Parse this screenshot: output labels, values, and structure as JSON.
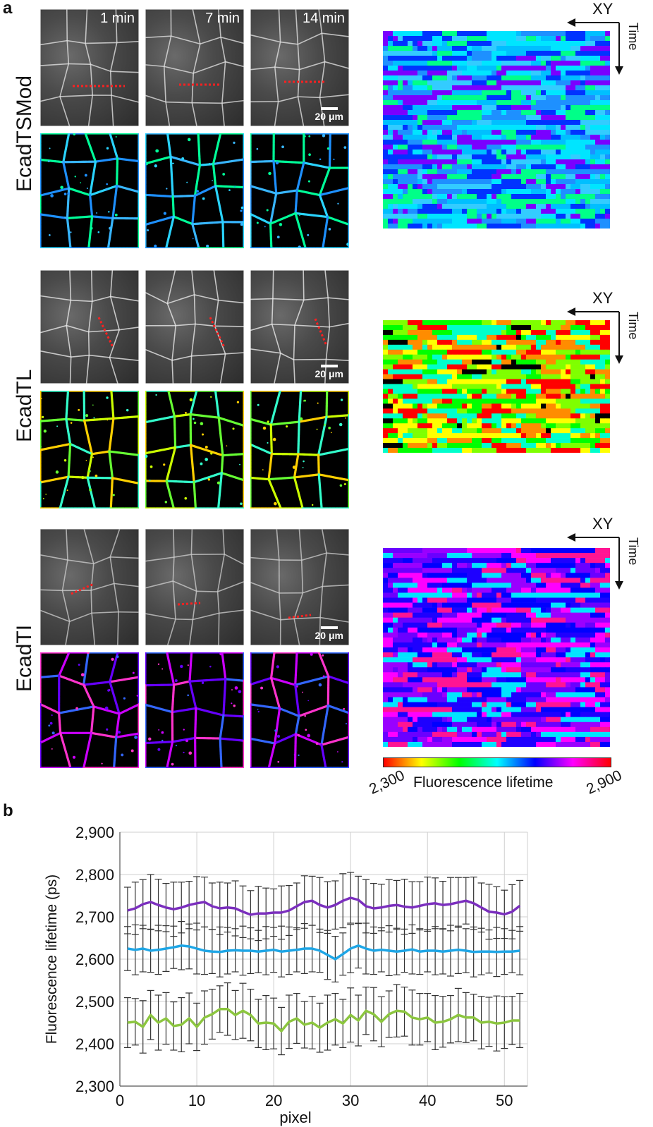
{
  "panel_a": {
    "letter": "a",
    "time_labels": [
      "1 min",
      "7 min",
      "14 min"
    ],
    "scale_bar": "20 μm",
    "rows": [
      {
        "label": "EcadTSMod",
        "kymo_palette": [
          "#00e5ff",
          "#00bfff",
          "#1e90ff",
          "#0033ff",
          "#00ff88",
          "#33ccff",
          "#7a00ff"
        ]
      },
      {
        "label": "EcadTL",
        "kymo_palette": [
          "#00ff00",
          "#7fff00",
          "#ffff00",
          "#ff8c00",
          "#00ffcc",
          "#ff0000",
          "#000000"
        ]
      },
      {
        "label": "EcadTI",
        "kymo_palette": [
          "#ff00ff",
          "#9a00ff",
          "#0000ff",
          "#00e5ff",
          "#ff1493",
          "#6a00ff",
          "#1e00ff"
        ]
      }
    ],
    "kymo_axis": {
      "xy": "XY",
      "time": "Time"
    },
    "colorbar": {
      "min": "2,300",
      "label": "Fluorescence lifetime",
      "max": "2,900"
    }
  },
  "panel_b": {
    "letter": "b"
  },
  "chart_data": {
    "type": "line",
    "title": "",
    "xlabel": "pixel",
    "ylabel": "Fluorescence lifetime (ps)",
    "xlim": [
      0,
      53
    ],
    "ylim": [
      2300,
      2900
    ],
    "xticks": [
      0,
      10,
      20,
      30,
      40,
      50
    ],
    "yticks": [
      2300,
      2400,
      2500,
      2600,
      2700,
      2800,
      2900
    ],
    "ytick_labels": [
      "2,300",
      "2,400",
      "2,500",
      "2,600",
      "2,700",
      "2,800",
      "2,900"
    ],
    "grid": true,
    "x": [
      1,
      2,
      3,
      4,
      5,
      6,
      7,
      8,
      9,
      10,
      11,
      12,
      13,
      14,
      15,
      16,
      17,
      18,
      19,
      20,
      21,
      22,
      23,
      24,
      25,
      26,
      27,
      28,
      29,
      30,
      31,
      32,
      33,
      34,
      35,
      36,
      37,
      38,
      39,
      40,
      41,
      42,
      43,
      44,
      45,
      46,
      47,
      48,
      49,
      50,
      51,
      52
    ],
    "series": [
      {
        "color": "#7b2fbe",
        "values": [
          2715,
          2720,
          2730,
          2735,
          2728,
          2722,
          2718,
          2722,
          2728,
          2732,
          2735,
          2725,
          2720,
          2722,
          2720,
          2712,
          2705,
          2708,
          2708,
          2710,
          2710,
          2715,
          2725,
          2735,
          2738,
          2728,
          2722,
          2728,
          2738,
          2745,
          2740,
          2725,
          2720,
          2722,
          2726,
          2728,
          2724,
          2722,
          2726,
          2730,
          2732,
          2728,
          2730,
          2734,
          2738,
          2732,
          2722,
          2712,
          2710,
          2706,
          2712,
          2726
        ],
        "err": 60
      },
      {
        "color": "#1ea6e6",
        "values": [
          2625,
          2622,
          2625,
          2620,
          2622,
          2625,
          2628,
          2632,
          2630,
          2625,
          2620,
          2618,
          2617,
          2620,
          2621,
          2620,
          2620,
          2618,
          2620,
          2622,
          2618,
          2620,
          2622,
          2625,
          2625,
          2620,
          2610,
          2600,
          2612,
          2625,
          2632,
          2625,
          2620,
          2622,
          2620,
          2618,
          2620,
          2623,
          2618,
          2620,
          2620,
          2618,
          2620,
          2622,
          2620,
          2617,
          2618,
          2618,
          2617,
          2618,
          2618,
          2620
        ],
        "err": 55
      },
      {
        "color": "#8cc63f",
        "values": [
          2450,
          2452,
          2440,
          2468,
          2450,
          2460,
          2442,
          2445,
          2460,
          2440,
          2462,
          2470,
          2482,
          2482,
          2468,
          2478,
          2468,
          2448,
          2450,
          2448,
          2430,
          2452,
          2460,
          2445,
          2450,
          2438,
          2450,
          2458,
          2448,
          2468,
          2455,
          2478,
          2470,
          2452,
          2470,
          2478,
          2476,
          2462,
          2458,
          2462,
          2450,
          2452,
          2458,
          2468,
          2462,
          2462,
          2450,
          2452,
          2448,
          2450,
          2455,
          2455
        ],
        "err": 60
      }
    ]
  }
}
